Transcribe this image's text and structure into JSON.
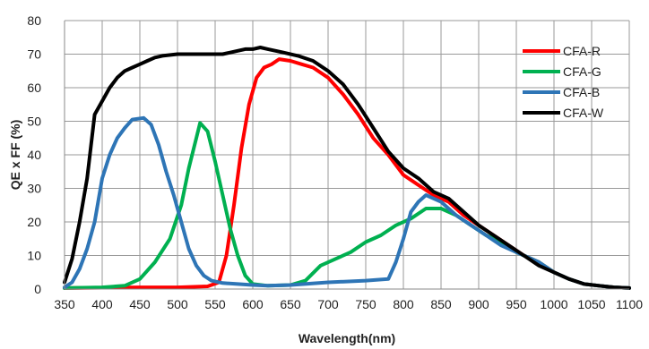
{
  "chart_data": {
    "type": "line",
    "title": "",
    "xlabel": "Wavelength(nm)",
    "ylabel": "QE x FF (%)",
    "xlim": [
      350,
      1100
    ],
    "ylim": [
      0,
      80
    ],
    "x_ticks": [
      350,
      400,
      450,
      500,
      550,
      600,
      650,
      700,
      750,
      800,
      850,
      900,
      950,
      1000,
      1050,
      1100
    ],
    "y_ticks": [
      0,
      10,
      20,
      30,
      40,
      50,
      60,
      70,
      80
    ],
    "grid": true,
    "legend_position": "top-right",
    "series": [
      {
        "name": "CFA-R",
        "color": "#ff0000",
        "points": [
          [
            350,
            0.3
          ],
          [
            400,
            0.4
          ],
          [
            450,
            0.5
          ],
          [
            500,
            0.5
          ],
          [
            540,
            0.8
          ],
          [
            555,
            2
          ],
          [
            565,
            10
          ],
          [
            575,
            25
          ],
          [
            585,
            42
          ],
          [
            595,
            55
          ],
          [
            605,
            63
          ],
          [
            615,
            66
          ],
          [
            625,
            67
          ],
          [
            635,
            68.5
          ],
          [
            650,
            68
          ],
          [
            665,
            67
          ],
          [
            680,
            66
          ],
          [
            700,
            63
          ],
          [
            720,
            58
          ],
          [
            740,
            52
          ],
          [
            760,
            45
          ],
          [
            780,
            40
          ],
          [
            800,
            34
          ],
          [
            820,
            31
          ],
          [
            840,
            28
          ],
          [
            860,
            26
          ],
          [
            880,
            22
          ],
          [
            900,
            19
          ],
          [
            920,
            16
          ],
          [
            940,
            13
          ],
          [
            960,
            10
          ],
          [
            980,
            8
          ],
          [
            1000,
            5
          ],
          [
            1020,
            3
          ],
          [
            1040,
            1.5
          ],
          [
            1060,
            1
          ],
          [
            1080,
            0.5
          ],
          [
            1100,
            0.3
          ]
        ]
      },
      {
        "name": "CFA-G",
        "color": "#00b050",
        "points": [
          [
            350,
            0.3
          ],
          [
            400,
            0.5
          ],
          [
            430,
            1
          ],
          [
            450,
            3
          ],
          [
            470,
            8
          ],
          [
            490,
            15
          ],
          [
            505,
            25
          ],
          [
            515,
            36
          ],
          [
            525,
            45
          ],
          [
            530,
            49.5
          ],
          [
            540,
            47
          ],
          [
            550,
            38
          ],
          [
            560,
            28
          ],
          [
            570,
            18
          ],
          [
            580,
            10
          ],
          [
            590,
            4
          ],
          [
            600,
            1.5
          ],
          [
            620,
            1
          ],
          [
            650,
            1.2
          ],
          [
            670,
            2.5
          ],
          [
            690,
            7
          ],
          [
            710,
            9
          ],
          [
            730,
            11
          ],
          [
            750,
            14
          ],
          [
            770,
            16
          ],
          [
            790,
            19
          ],
          [
            810,
            21
          ],
          [
            830,
            24
          ],
          [
            850,
            24
          ],
          [
            870,
            22
          ],
          [
            890,
            19
          ],
          [
            910,
            16
          ],
          [
            930,
            14
          ],
          [
            950,
            11
          ],
          [
            980,
            8
          ],
          [
            1000,
            5
          ],
          [
            1020,
            3
          ],
          [
            1040,
            1.5
          ],
          [
            1060,
            1
          ],
          [
            1080,
            0.5
          ],
          [
            1100,
            0.3
          ]
        ]
      },
      {
        "name": "CFA-B",
        "color": "#2e75b6",
        "points": [
          [
            350,
            0.5
          ],
          [
            360,
            2
          ],
          [
            370,
            6
          ],
          [
            380,
            12
          ],
          [
            390,
            20
          ],
          [
            400,
            33
          ],
          [
            410,
            40
          ],
          [
            420,
            45
          ],
          [
            430,
            48
          ],
          [
            440,
            50.5
          ],
          [
            455,
            51
          ],
          [
            465,
            49
          ],
          [
            475,
            43
          ],
          [
            485,
            35
          ],
          [
            495,
            28
          ],
          [
            505,
            20
          ],
          [
            515,
            12
          ],
          [
            525,
            7
          ],
          [
            535,
            4
          ],
          [
            545,
            2.5
          ],
          [
            560,
            1.8
          ],
          [
            580,
            1.5
          ],
          [
            600,
            1.2
          ],
          [
            620,
            1
          ],
          [
            650,
            1.2
          ],
          [
            700,
            2
          ],
          [
            750,
            2.5
          ],
          [
            780,
            3
          ],
          [
            790,
            8
          ],
          [
            800,
            15
          ],
          [
            810,
            23
          ],
          [
            820,
            26
          ],
          [
            830,
            28
          ],
          [
            840,
            27
          ],
          [
            850,
            26
          ],
          [
            870,
            22
          ],
          [
            890,
            19
          ],
          [
            910,
            16
          ],
          [
            930,
            13
          ],
          [
            950,
            11
          ],
          [
            980,
            8
          ],
          [
            1000,
            5
          ],
          [
            1020,
            3
          ],
          [
            1040,
            1.5
          ],
          [
            1060,
            1
          ],
          [
            1080,
            0.5
          ],
          [
            1100,
            0.3
          ]
        ]
      },
      {
        "name": "CFA-W",
        "color": "#000000",
        "points": [
          [
            350,
            2
          ],
          [
            360,
            9
          ],
          [
            370,
            20
          ],
          [
            380,
            33
          ],
          [
            390,
            52
          ],
          [
            400,
            56
          ],
          [
            410,
            60
          ],
          [
            420,
            63
          ],
          [
            430,
            65
          ],
          [
            440,
            66
          ],
          [
            450,
            67
          ],
          [
            460,
            68
          ],
          [
            470,
            69
          ],
          [
            480,
            69.5
          ],
          [
            500,
            70
          ],
          [
            520,
            70
          ],
          [
            540,
            70
          ],
          [
            560,
            70
          ],
          [
            580,
            71
          ],
          [
            590,
            71.5
          ],
          [
            600,
            71.5
          ],
          [
            610,
            72
          ],
          [
            620,
            71.5
          ],
          [
            640,
            70.5
          ],
          [
            660,
            69.5
          ],
          [
            680,
            68
          ],
          [
            700,
            65
          ],
          [
            720,
            61
          ],
          [
            740,
            55
          ],
          [
            760,
            48
          ],
          [
            780,
            41
          ],
          [
            800,
            36
          ],
          [
            820,
            33
          ],
          [
            840,
            29
          ],
          [
            860,
            27
          ],
          [
            880,
            23
          ],
          [
            900,
            19
          ],
          [
            920,
            16
          ],
          [
            940,
            13
          ],
          [
            960,
            10
          ],
          [
            980,
            7
          ],
          [
            1000,
            5
          ],
          [
            1020,
            3
          ],
          [
            1040,
            1.5
          ],
          [
            1060,
            1
          ],
          [
            1080,
            0.5
          ],
          [
            1100,
            0.3
          ]
        ]
      }
    ]
  }
}
